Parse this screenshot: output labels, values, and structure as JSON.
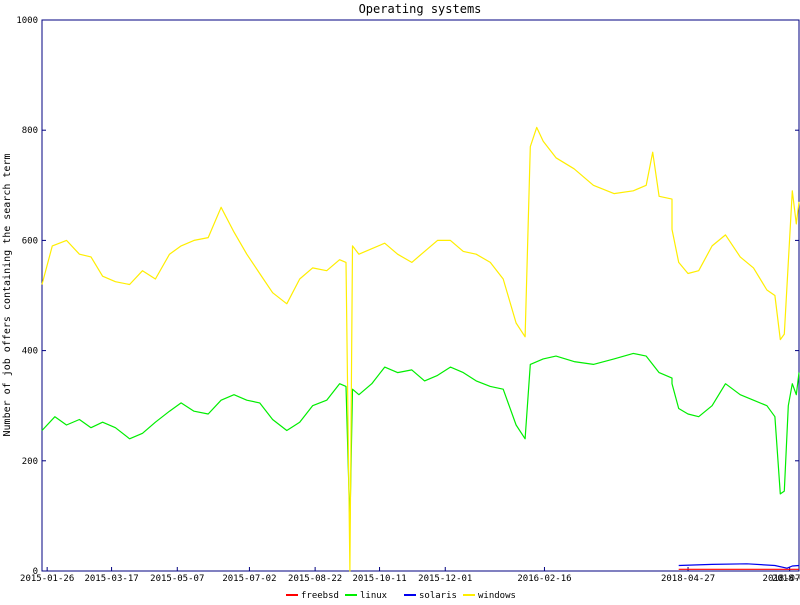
{
  "chart_data": {
    "type": "line",
    "title": "Operating systems",
    "ylabel": "Number of job offers containing the search term",
    "xlabel": "",
    "ylim": [
      0,
      1000
    ],
    "yticks": [
      0,
      200,
      400,
      600,
      800,
      1000
    ],
    "xlim": [
      "2015-01-22",
      "2018-07-19"
    ],
    "xticks": [
      "2015-01-26",
      "2015-03-17",
      "2015-05-07",
      "2015-07-02",
      "2015-08-22",
      "2015-10-11",
      "2015-12-01",
      "2016-02-16",
      "2018-04-27",
      "2018-07-12",
      "2018-07-19"
    ],
    "grid": false,
    "legend_position": "bottom-center",
    "series": [
      {
        "name": "freebsd",
        "color": "#ff0000",
        "points": [
          [
            "2018-04-20",
            3
          ],
          [
            "2018-07-19",
            3
          ]
        ]
      },
      {
        "name": "linux",
        "color": "#00ee00",
        "points": [
          [
            "2015-01-22",
            255
          ],
          [
            "2015-02-01",
            280
          ],
          [
            "2015-02-10",
            265
          ],
          [
            "2015-02-20",
            275
          ],
          [
            "2015-03-01",
            260
          ],
          [
            "2015-03-10",
            270
          ],
          [
            "2015-03-20",
            260
          ],
          [
            "2015-03-31",
            240
          ],
          [
            "2015-04-10",
            250
          ],
          [
            "2015-04-20",
            270
          ],
          [
            "2015-05-01",
            290
          ],
          [
            "2015-05-10",
            305
          ],
          [
            "2015-05-20",
            290
          ],
          [
            "2015-05-31",
            285
          ],
          [
            "2015-06-10",
            310
          ],
          [
            "2015-06-20",
            320
          ],
          [
            "2015-06-30",
            310
          ],
          [
            "2015-07-10",
            305
          ],
          [
            "2015-07-20",
            275
          ],
          [
            "2015-07-31",
            255
          ],
          [
            "2015-08-10",
            270
          ],
          [
            "2015-08-20",
            300
          ],
          [
            "2015-08-31",
            310
          ],
          [
            "2015-09-10",
            340
          ],
          [
            "2015-09-15",
            335
          ],
          [
            "2015-09-18",
            85
          ],
          [
            "2015-09-20",
            330
          ],
          [
            "2015-09-25",
            320
          ],
          [
            "2015-10-05",
            340
          ],
          [
            "2015-10-15",
            370
          ],
          [
            "2015-10-25",
            360
          ],
          [
            "2015-11-05",
            365
          ],
          [
            "2015-11-15",
            345
          ],
          [
            "2015-11-25",
            355
          ],
          [
            "2015-12-05",
            370
          ],
          [
            "2015-12-15",
            360
          ],
          [
            "2015-12-25",
            345
          ],
          [
            "2016-01-05",
            335
          ],
          [
            "2016-01-15",
            330
          ],
          [
            "2016-01-25",
            265
          ],
          [
            "2016-02-01",
            240
          ],
          [
            "2016-02-05",
            375
          ],
          [
            "2016-02-15",
            385
          ],
          [
            "2016-02-25",
            390
          ],
          [
            "2016-03-10",
            380
          ],
          [
            "2016-03-25",
            375
          ],
          [
            "2016-04-10",
            385
          ],
          [
            "2016-04-25",
            395
          ],
          [
            "2016-05-05",
            390
          ],
          [
            "2016-05-15",
            360
          ],
          [
            "2016-05-25",
            350
          ],
          [
            "2018-04-15",
            340
          ],
          [
            "2018-04-20",
            295
          ],
          [
            "2018-04-27",
            285
          ],
          [
            "2018-05-05",
            280
          ],
          [
            "2018-05-15",
            300
          ],
          [
            "2018-05-25",
            340
          ],
          [
            "2018-06-05",
            320
          ],
          [
            "2018-06-15",
            310
          ],
          [
            "2018-06-25",
            300
          ],
          [
            "2018-07-01",
            280
          ],
          [
            "2018-07-05",
            140
          ],
          [
            "2018-07-08",
            145
          ],
          [
            "2018-07-11",
            300
          ],
          [
            "2018-07-14",
            340
          ],
          [
            "2018-07-17",
            320
          ],
          [
            "2018-07-19",
            360
          ]
        ]
      },
      {
        "name": "solaris",
        "color": "#0000ee",
        "points": [
          [
            "2018-04-20",
            10
          ],
          [
            "2018-05-15",
            12
          ],
          [
            "2018-06-10",
            13
          ],
          [
            "2018-07-01",
            10
          ],
          [
            "2018-07-10",
            5
          ],
          [
            "2018-07-14",
            9
          ],
          [
            "2018-07-19",
            10
          ]
        ]
      },
      {
        "name": "windows",
        "color": "#ffee00",
        "points": [
          [
            "2015-01-22",
            520
          ],
          [
            "2015-01-30",
            590
          ],
          [
            "2015-02-10",
            600
          ],
          [
            "2015-02-20",
            575
          ],
          [
            "2015-03-01",
            570
          ],
          [
            "2015-03-10",
            535
          ],
          [
            "2015-03-20",
            525
          ],
          [
            "2015-03-31",
            520
          ],
          [
            "2015-04-10",
            545
          ],
          [
            "2015-04-20",
            530
          ],
          [
            "2015-05-01",
            575
          ],
          [
            "2015-05-10",
            590
          ],
          [
            "2015-05-20",
            600
          ],
          [
            "2015-05-31",
            605
          ],
          [
            "2015-06-10",
            660
          ],
          [
            "2015-06-20",
            615
          ],
          [
            "2015-06-30",
            575
          ],
          [
            "2015-07-10",
            540
          ],
          [
            "2015-07-20",
            505
          ],
          [
            "2015-07-31",
            485
          ],
          [
            "2015-08-10",
            530
          ],
          [
            "2015-08-20",
            550
          ],
          [
            "2015-08-31",
            545
          ],
          [
            "2015-09-10",
            565
          ],
          [
            "2015-09-15",
            560
          ],
          [
            "2015-09-18",
            0
          ],
          [
            "2015-09-20",
            590
          ],
          [
            "2015-09-25",
            575
          ],
          [
            "2015-10-05",
            585
          ],
          [
            "2015-10-15",
            595
          ],
          [
            "2015-10-25",
            575
          ],
          [
            "2015-11-05",
            560
          ],
          [
            "2015-11-15",
            580
          ],
          [
            "2015-11-25",
            600
          ],
          [
            "2015-12-05",
            600
          ],
          [
            "2015-12-15",
            580
          ],
          [
            "2015-12-25",
            575
          ],
          [
            "2016-01-05",
            560
          ],
          [
            "2016-01-15",
            530
          ],
          [
            "2016-01-25",
            450
          ],
          [
            "2016-02-01",
            425
          ],
          [
            "2016-02-05",
            770
          ],
          [
            "2016-02-10",
            805
          ],
          [
            "2016-02-15",
            780
          ],
          [
            "2016-02-25",
            750
          ],
          [
            "2016-03-10",
            730
          ],
          [
            "2016-03-25",
            700
          ],
          [
            "2016-04-10",
            685
          ],
          [
            "2016-04-25",
            690
          ],
          [
            "2016-05-05",
            700
          ],
          [
            "2016-05-10",
            760
          ],
          [
            "2016-05-15",
            680
          ],
          [
            "2016-05-25",
            675
          ],
          [
            "2018-04-15",
            620
          ],
          [
            "2018-04-20",
            560
          ],
          [
            "2018-04-27",
            540
          ],
          [
            "2018-05-05",
            545
          ],
          [
            "2018-05-15",
            590
          ],
          [
            "2018-05-25",
            610
          ],
          [
            "2018-06-05",
            570
          ],
          [
            "2018-06-15",
            550
          ],
          [
            "2018-06-25",
            510
          ],
          [
            "2018-07-01",
            500
          ],
          [
            "2018-07-05",
            420
          ],
          [
            "2018-07-08",
            430
          ],
          [
            "2018-07-11",
            560
          ],
          [
            "2018-07-14",
            690
          ],
          [
            "2018-07-17",
            630
          ],
          [
            "2018-07-19",
            670
          ]
        ]
      }
    ]
  }
}
